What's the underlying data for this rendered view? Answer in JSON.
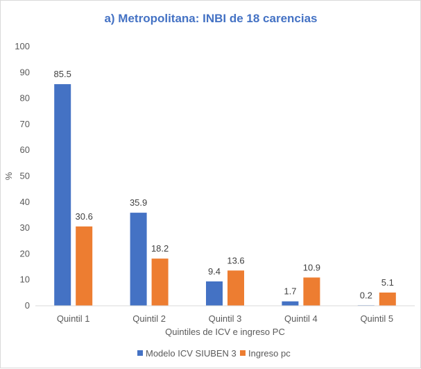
{
  "chart_data": {
    "type": "bar",
    "title": "a) Metropolitana: INBI de 18 carencias",
    "xlabel": "Quintiles de ICV e ingreso PC",
    "ylabel": "%",
    "ylim": [
      0,
      100
    ],
    "yticks": [
      0,
      10,
      20,
      30,
      40,
      50,
      60,
      70,
      80,
      90,
      100
    ],
    "categories": [
      "Quintil 1",
      "Quintil 2",
      "Quintil 3",
      "Quintil 4",
      "Quintil 5"
    ],
    "series": [
      {
        "name": "Modelo ICV SIUBEN 3",
        "values": [
          85.5,
          35.9,
          9.4,
          1.7,
          0.2
        ]
      },
      {
        "name": "Ingreso pc",
        "values": [
          30.6,
          18.2,
          13.6,
          10.9,
          5.1
        ]
      }
    ],
    "data_labels": true,
    "grid": false,
    "legend_position": "bottom"
  },
  "colors": {
    "title": "#4472c4",
    "series": [
      "#4472c4",
      "#ed7d31"
    ],
    "axis": "#d9d9d9"
  }
}
